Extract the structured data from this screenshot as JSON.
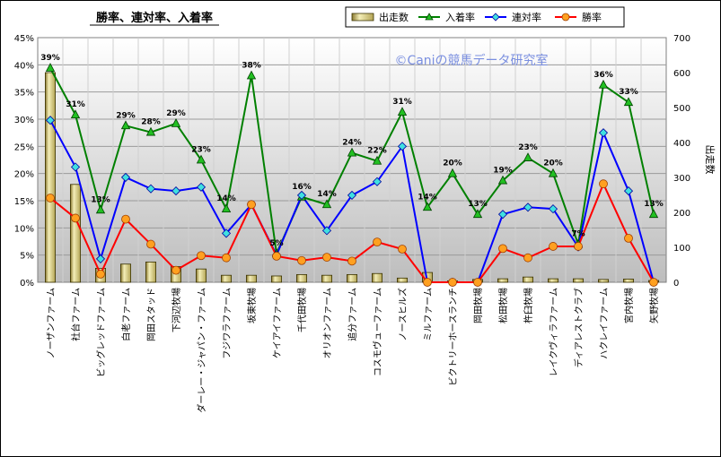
{
  "chart_data": {
    "type": "line",
    "title": "勝率、連対率、入着率",
    "watermark": "©Caniの競馬データ研究室",
    "y2label": "出走数",
    "ylim": [
      0,
      45
    ],
    "y2lim": [
      0,
      700
    ],
    "y_ticks": [
      "0%",
      "5%",
      "10%",
      "15%",
      "20%",
      "25%",
      "30%",
      "35%",
      "40%",
      "45%"
    ],
    "y2_ticks": [
      "0",
      "100",
      "200",
      "300",
      "400",
      "500",
      "600",
      "700"
    ],
    "legend_position": "top-right",
    "categories": [
      "ノーザンファーム",
      "社台ファーム",
      "ビッグレッドファーム",
      "白老ファーム",
      "岡田スタッド",
      "下河辺牧場",
      "ダーレー・ジャパン・ファーム",
      "フジワラファーム",
      "坂東牧場",
      "ケイアイファーム",
      "千代田牧場",
      "オリオンファーム",
      "追分ファーム",
      "コスモヴューファーム",
      "ノースヒルズ",
      "ミルファーム",
      "ビクトリーホースランチ",
      "岡田牧場",
      "松田牧場",
      "杵臼牧場",
      "レイクヴィラファーム",
      "ディアレストクラブ",
      "ハクレイファーム",
      "宮内牧場",
      "矢野牧場"
    ],
    "series": [
      {
        "name": "出走数",
        "kind": "bar",
        "axis": "right",
        "color": "#e8e0a0",
        "values": [
          600,
          280,
          40,
          52,
          58,
          45,
          38,
          20,
          20,
          18,
          22,
          20,
          22,
          25,
          12,
          28,
          4,
          8,
          10,
          15,
          10,
          10,
          8,
          9,
          5
        ]
      },
      {
        "name": "入着率",
        "kind": "line",
        "axis": "left",
        "color": "#008000",
        "values": [
          39.4,
          30.8,
          13.3,
          28.8,
          27.6,
          29.2,
          22.5,
          13.5,
          38.0,
          5.3,
          15.7,
          14.3,
          23.8,
          22.3,
          31.3,
          13.8,
          20.0,
          12.5,
          18.7,
          22.9,
          20.0,
          7.0,
          36.3,
          33.1,
          12.5
        ]
      },
      {
        "name": "連対率",
        "kind": "line",
        "axis": "left",
        "color": "#0000ff",
        "values": [
          29.8,
          21.2,
          4.3,
          19.3,
          17.2,
          16.8,
          17.5,
          9.0,
          14.3,
          5.0,
          16.0,
          9.5,
          16.0,
          18.5,
          25.0,
          0,
          0,
          0,
          12.5,
          13.8,
          13.5,
          6.5,
          27.5,
          16.8,
          0
        ]
      },
      {
        "name": "勝率",
        "kind": "line",
        "axis": "left",
        "color": "#ff0000",
        "values": [
          15.5,
          11.8,
          1.5,
          11.6,
          7.0,
          2.2,
          4.9,
          4.5,
          14.3,
          4.8,
          4.0,
          4.6,
          3.9,
          7.4,
          6.1,
          0,
          0,
          0,
          6.2,
          4.5,
          6.6,
          6.6,
          18.1,
          8.1,
          0
        ]
      }
    ],
    "point_labels": {
      "series": "入着率",
      "labels": [
        "39%",
        "31%",
        "13%",
        "29%",
        "28%",
        "29%",
        "23%",
        "14%",
        "38%",
        "5%",
        "16%",
        "14%",
        "24%",
        "22%",
        "31%",
        "14%",
        "20%",
        "13%",
        "19%",
        "23%",
        "20%",
        "7%",
        "36%",
        "33%",
        "13%"
      ]
    }
  }
}
